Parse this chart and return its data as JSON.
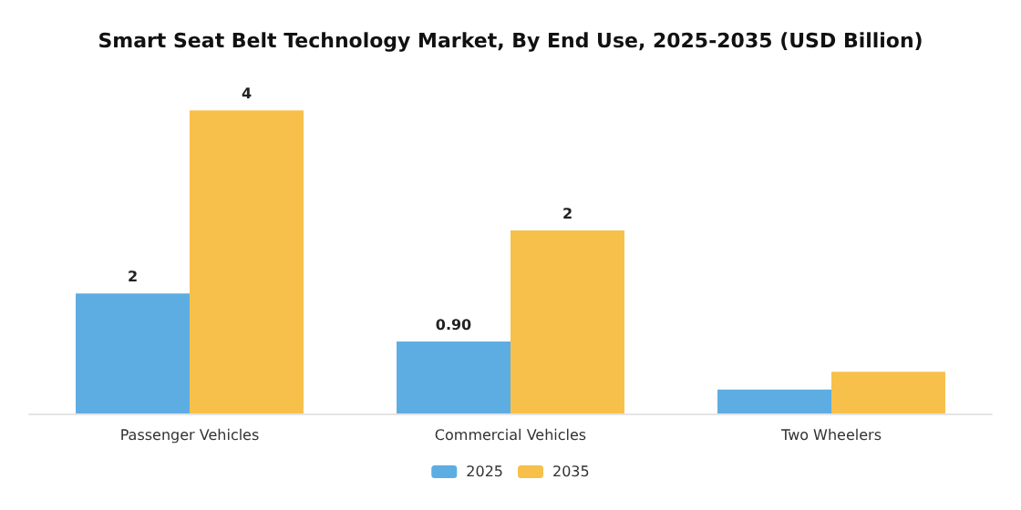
{
  "chart_data": {
    "type": "bar",
    "title": "Smart Seat Belt Technology Market, By End Use, 2025-2035 (USD Billion)",
    "categories": [
      "Passenger Vehicles",
      "Commercial Vehicles",
      "Two Wheelers"
    ],
    "series": [
      {
        "name": "2025",
        "color": "#5dade2",
        "values": [
          1.5,
          0.9,
          0.3
        ],
        "value_labels": [
          "2",
          "0.90",
          null
        ]
      },
      {
        "name": "2035",
        "color": "#f7c04a",
        "values": [
          3.79,
          2.29,
          0.52
        ],
        "value_labels": [
          "4",
          "2",
          null
        ]
      }
    ],
    "legend": "bottom"
  }
}
